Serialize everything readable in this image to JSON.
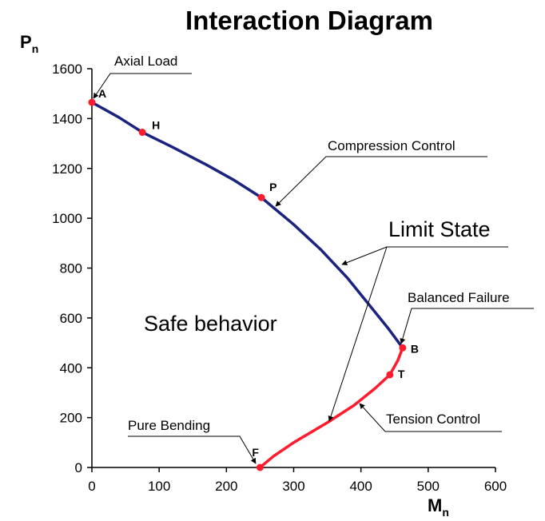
{
  "chart_data": {
    "type": "line",
    "title": "Interaction Diagram",
    "ylabel": "P",
    "ylabel_sub": "n",
    "xlabel": "M",
    "xlabel_sub": "n",
    "xlim": [
      0,
      600
    ],
    "ylim": [
      0,
      1600
    ],
    "xticks": [
      0,
      100,
      200,
      300,
      400,
      500,
      600
    ],
    "yticks": [
      0,
      200,
      400,
      600,
      800,
      1000,
      1200,
      1400,
      1600
    ],
    "colors": {
      "compression": "#1a237e",
      "tension": "#ff1a2e",
      "point": "#ff1a2e"
    },
    "series": [
      {
        "name": "Compression Control",
        "color": "#1a237e",
        "x": [
          0,
          40,
          75,
          120,
          170,
          210,
          252,
          300,
          340,
          380,
          410,
          440,
          462
        ],
        "y": [
          1465,
          1405,
          1345,
          1285,
          1215,
          1155,
          1083,
          975,
          875,
          760,
          660,
          560,
          480
        ]
      },
      {
        "name": "Tension Control",
        "color": "#ff1a2e",
        "x": [
          462,
          455,
          443,
          420,
          390,
          350,
          300,
          270,
          250
        ],
        "y": [
          480,
          430,
          372,
          315,
          250,
          180,
          100,
          45,
          0
        ]
      }
    ],
    "points": [
      {
        "label": "A",
        "x": 0,
        "y": 1465
      },
      {
        "label": "H",
        "x": 75,
        "y": 1345
      },
      {
        "label": "P",
        "x": 252,
        "y": 1083
      },
      {
        "label": "B",
        "x": 462,
        "y": 480
      },
      {
        "label": "T",
        "x": 443,
        "y": 372
      },
      {
        "label": "F",
        "x": 250,
        "y": 0
      }
    ],
    "annotations": {
      "axial_load": "Axial Load",
      "compression_control": "Compression Control",
      "limit_state": "Limit State",
      "balanced_failure": "Balanced Failure",
      "safe_behavior": "Safe behavior",
      "tension_control": "Tension Control",
      "pure_bending": "Pure Bending"
    }
  }
}
